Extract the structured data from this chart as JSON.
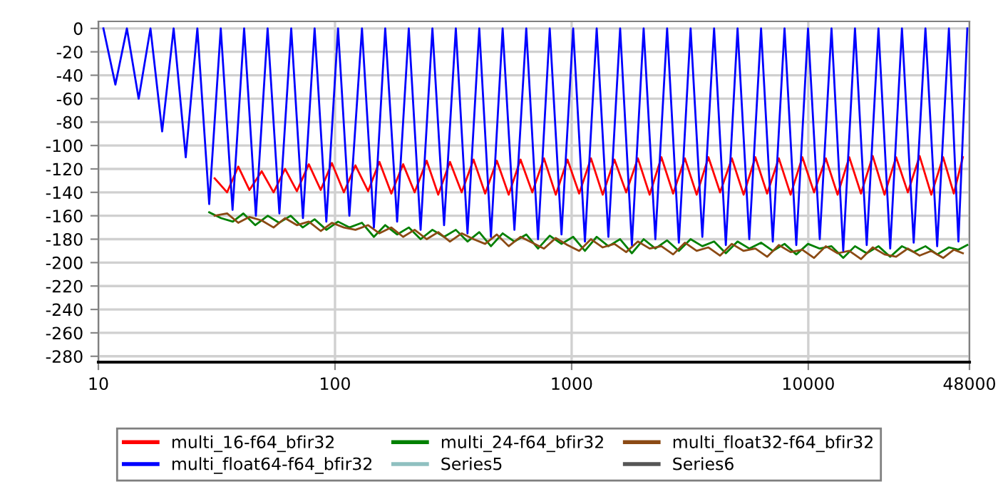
{
  "chart_data": {
    "type": "line",
    "log": "x",
    "grid": true,
    "legend": "bottom",
    "marker": "none",
    "line_style": "solid",
    "xlim": [
      10,
      48000
    ],
    "xticks": [
      10,
      100,
      1000,
      10000,
      48000
    ],
    "ylim": [
      -285,
      6
    ],
    "yticks": [
      0,
      -20,
      -40,
      -60,
      -80,
      -100,
      -120,
      -140,
      -160,
      -180,
      -200,
      -220,
      -240,
      -260,
      -280
    ],
    "x": [
      10.5,
      11.8,
      13.2,
      14.8,
      16.6,
      18.6,
      20.8,
      23.4,
      26.2,
      29.4,
      32.9,
      36.9,
      41.3,
      46.3,
      51.9,
      58.2,
      65.3,
      73.2,
      82,
      91.9,
      103,
      115,
      130,
      146,
      163,
      183,
      205,
      230,
      258,
      289,
      324,
      363,
      407,
      456,
      511,
      573,
      643,
      721,
      808,
      906,
      1015,
      1138,
      1276,
      1430,
      1603,
      1797,
      2015,
      2258,
      2532,
      2838,
      3182,
      3567,
      3999,
      4483,
      5025,
      5633,
      6316,
      7080,
      7937,
      8898,
      9975,
      11182,
      12535,
      14052,
      15753,
      17659,
      19797,
      22190,
      24879,
      27890,
      31266,
      35050,
      39292,
      43100,
      47000
    ],
    "series": [
      {
        "name": "multi_16-f64_bfir32",
        "color": "#ff0000",
        "x": [
          31,
          35,
          39,
          43.5,
          49,
          55,
          61.5,
          69,
          77.5,
          87,
          97,
          109,
          122,
          138,
          154,
          173,
          194,
          217,
          244,
          273,
          306,
          343,
          385,
          431,
          483,
          542,
          608,
          682,
          764,
          857,
          960,
          1076,
          1207,
          1353,
          1516,
          1700,
          1905,
          2136,
          2395,
          2685,
          3010,
          3375,
          3785,
          4240,
          4755,
          5330,
          5975,
          6700,
          7510,
          8420,
          9440,
          10580,
          11860,
          13300,
          14900,
          16700,
          18720,
          21000,
          23500,
          26350,
          29550,
          33100,
          37150,
          41200,
          45000
        ],
        "values": [
          -128,
          -140,
          -118,
          -138,
          -122,
          -140,
          -120,
          -139,
          -116,
          -138,
          -115,
          -140,
          -117,
          -139,
          -114,
          -141,
          -116,
          -140,
          -113,
          -142,
          -114,
          -140,
          -112,
          -141,
          -113,
          -142,
          -112,
          -140,
          -111,
          -142,
          -112,
          -141,
          -111,
          -142,
          -112,
          -140,
          -111,
          -142,
          -110,
          -141,
          -111,
          -142,
          -110,
          -140,
          -111,
          -142,
          -110,
          -141,
          -111,
          -142,
          -110,
          -140,
          -111,
          -142,
          -110,
          -141,
          -109,
          -142,
          -110,
          -140,
          -109,
          -142,
          -110,
          -141,
          -110
        ]
      },
      {
        "name": "multi_24-f64_bfir32",
        "color": "#008000",
        "x": [
          29.4,
          33,
          37,
          41,
          46,
          52,
          58,
          65,
          73,
          82,
          92,
          103,
          115,
          130,
          146,
          163,
          183,
          205,
          230,
          258,
          289,
          324,
          363,
          407,
          456,
          511,
          573,
          643,
          721,
          808,
          906,
          1015,
          1138,
          1276,
          1430,
          1603,
          1797,
          2015,
          2258,
          2532,
          2838,
          3182,
          3567,
          3999,
          4483,
          5025,
          5633,
          6316,
          7080,
          7937,
          8898,
          9975,
          11182,
          12535,
          14052,
          15753,
          17659,
          19797,
          22190,
          24879,
          27890,
          31266,
          35050,
          39292,
          43100,
          47000
        ],
        "values": [
          -157,
          -162,
          -165,
          -158,
          -168,
          -160,
          -166,
          -160,
          -170,
          -163,
          -172,
          -165,
          -170,
          -166,
          -178,
          -168,
          -176,
          -170,
          -180,
          -172,
          -178,
          -172,
          -182,
          -174,
          -186,
          -175,
          -182,
          -176,
          -188,
          -177,
          -184,
          -178,
          -190,
          -178,
          -186,
          -180,
          -192,
          -180,
          -188,
          -181,
          -190,
          -180,
          -186,
          -182,
          -192,
          -182,
          -188,
          -183,
          -190,
          -184,
          -193,
          -184,
          -188,
          -186,
          -196,
          -186,
          -192,
          -186,
          -195,
          -186,
          -191,
          -186,
          -193,
          -187,
          -189,
          -185
        ]
      },
      {
        "name": "multi_float32-f64_bfir32",
        "color": "#8b4a14",
        "x": [
          31,
          35,
          39,
          43.5,
          49,
          55,
          61.5,
          69,
          77.5,
          87,
          97,
          109,
          122,
          138,
          154,
          173,
          194,
          217,
          244,
          273,
          306,
          343,
          385,
          431,
          483,
          542,
          608,
          682,
          764,
          857,
          960,
          1076,
          1207,
          1353,
          1516,
          1700,
          1905,
          2136,
          2395,
          2685,
          3010,
          3375,
          3785,
          4240,
          4755,
          5330,
          5975,
          6700,
          7510,
          8420,
          9440,
          10580,
          11860,
          13300,
          14900,
          16700,
          18720,
          21000,
          23500,
          26350,
          29550,
          33100,
          37150,
          41200,
          45000
        ],
        "values": [
          -160,
          -158,
          -166,
          -161,
          -164,
          -170,
          -162,
          -168,
          -165,
          -173,
          -166,
          -170,
          -172,
          -168,
          -175,
          -170,
          -178,
          -172,
          -180,
          -174,
          -182,
          -175,
          -180,
          -184,
          -176,
          -186,
          -178,
          -183,
          -188,
          -179,
          -185,
          -190,
          -180,
          -187,
          -184,
          -191,
          -182,
          -188,
          -186,
          -193,
          -183,
          -190,
          -187,
          -194,
          -184,
          -190,
          -188,
          -195,
          -185,
          -191,
          -189,
          -196,
          -186,
          -192,
          -190,
          -197,
          -187,
          -193,
          -195,
          -188,
          -194,
          -190,
          -196,
          -189,
          -192
        ]
      },
      {
        "name": "multi_float64-f64_bfir32",
        "color": "#0000ff",
        "values": [
          0,
          -48,
          0,
          -60,
          0,
          -88,
          0,
          -110,
          0,
          -150,
          0,
          -155,
          0,
          -160,
          0,
          -158,
          0,
          -162,
          0,
          -165,
          0,
          -160,
          0,
          -170,
          0,
          -165,
          0,
          -172,
          0,
          -168,
          0,
          -175,
          0,
          -178,
          0,
          -172,
          0,
          -180,
          0,
          -176,
          0,
          -182,
          0,
          -178,
          0,
          -185,
          0,
          -180,
          0,
          -183,
          0,
          -178,
          0,
          -185,
          0,
          -180,
          0,
          -182,
          0,
          -185,
          0,
          -180,
          0,
          -190,
          0,
          -185,
          0,
          -188,
          0,
          -183,
          0,
          -186,
          0,
          -182,
          0
        ]
      },
      {
        "name": "Series5",
        "color": "#8fc0c0",
        "values": [
          null,
          null,
          null,
          null,
          null,
          null,
          null,
          null,
          null,
          null,
          null,
          null,
          null,
          null,
          null,
          null,
          null,
          null,
          null,
          null,
          null,
          null,
          null,
          null,
          null,
          null,
          null,
          null,
          null,
          null,
          null,
          null,
          null,
          null,
          null,
          null,
          null,
          null,
          null,
          null,
          null,
          null,
          null,
          null,
          null,
          null,
          null,
          null,
          null,
          null,
          null,
          null,
          null,
          null,
          null,
          null,
          null,
          null,
          null,
          null,
          null,
          null,
          null,
          null,
          null,
          null,
          null,
          null,
          null,
          null,
          null,
          null,
          null,
          null,
          null
        ]
      },
      {
        "name": "Series6",
        "color": "#555555",
        "values": [
          null,
          null,
          null,
          null,
          null,
          null,
          null,
          null,
          null,
          null,
          null,
          null,
          null,
          null,
          null,
          null,
          null,
          null,
          null,
          null,
          null,
          null,
          null,
          null,
          null,
          null,
          null,
          null,
          null,
          null,
          null,
          null,
          null,
          null,
          null,
          null,
          null,
          null,
          null,
          null,
          null,
          null,
          null,
          null,
          null,
          null,
          null,
          null,
          null,
          null,
          null,
          null,
          null,
          null,
          null,
          null,
          null,
          null,
          null,
          null,
          null,
          null,
          null,
          null,
          null,
          null,
          null,
          null,
          null,
          null,
          null,
          null,
          null,
          null,
          null
        ]
      }
    ]
  }
}
